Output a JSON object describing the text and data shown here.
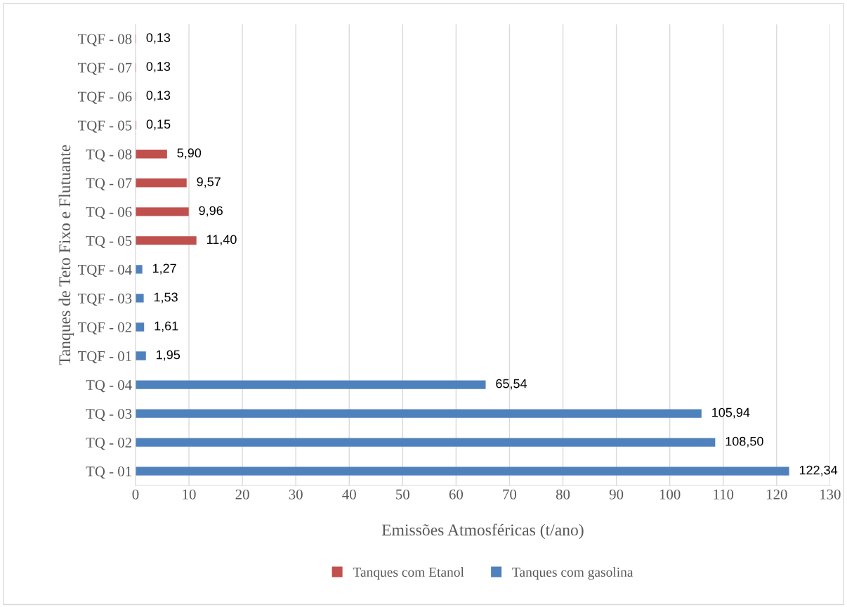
{
  "chart_data": {
    "type": "bar",
    "orientation": "horizontal",
    "xlabel": "Emissões Atmosféricas (t/ano)",
    "ylabel": "Tanques de Teto Fixo e Flutuante",
    "categories": [
      "TQF - 08",
      "TQF - 07",
      "TQF - 06",
      "TQF - 05",
      "TQ - 08",
      "TQ - 07",
      "TQ - 06",
      "TQ - 05",
      "TQF - 04",
      "TQF - 03",
      "TQF - 02",
      "TQF - 01",
      "TQ - 04",
      "TQ - 03",
      "TQ - 02",
      "TQ - 01"
    ],
    "series": [
      {
        "name": "Tanques com Etanol",
        "color": "#c0504d",
        "values": [
          0.13,
          0.13,
          0.13,
          0.15,
          5.9,
          9.57,
          9.96,
          11.4,
          null,
          null,
          null,
          null,
          null,
          null,
          null,
          null
        ],
        "value_labels": [
          "0,13",
          "0,13",
          "0,13",
          "0,15",
          "5,90",
          "9,57",
          "9,96",
          "11,40",
          null,
          null,
          null,
          null,
          null,
          null,
          null,
          null
        ]
      },
      {
        "name": "Tanques com gasolina",
        "color": "#4f81bd",
        "values": [
          null,
          null,
          null,
          null,
          null,
          null,
          null,
          null,
          1.27,
          1.53,
          1.61,
          1.95,
          65.54,
          105.94,
          108.5,
          122.34
        ],
        "value_labels": [
          null,
          null,
          null,
          null,
          null,
          null,
          null,
          null,
          "1,27",
          "1,53",
          "1,61",
          "1,95",
          "65,54",
          "105,94",
          "108,50",
          "122,34"
        ]
      }
    ],
    "xlim": [
      0,
      130
    ],
    "xticks": [
      0,
      10,
      20,
      30,
      40,
      50,
      60,
      70,
      80,
      90,
      100,
      110,
      120,
      130
    ],
    "grid": "x",
    "legend": "bottom"
  }
}
